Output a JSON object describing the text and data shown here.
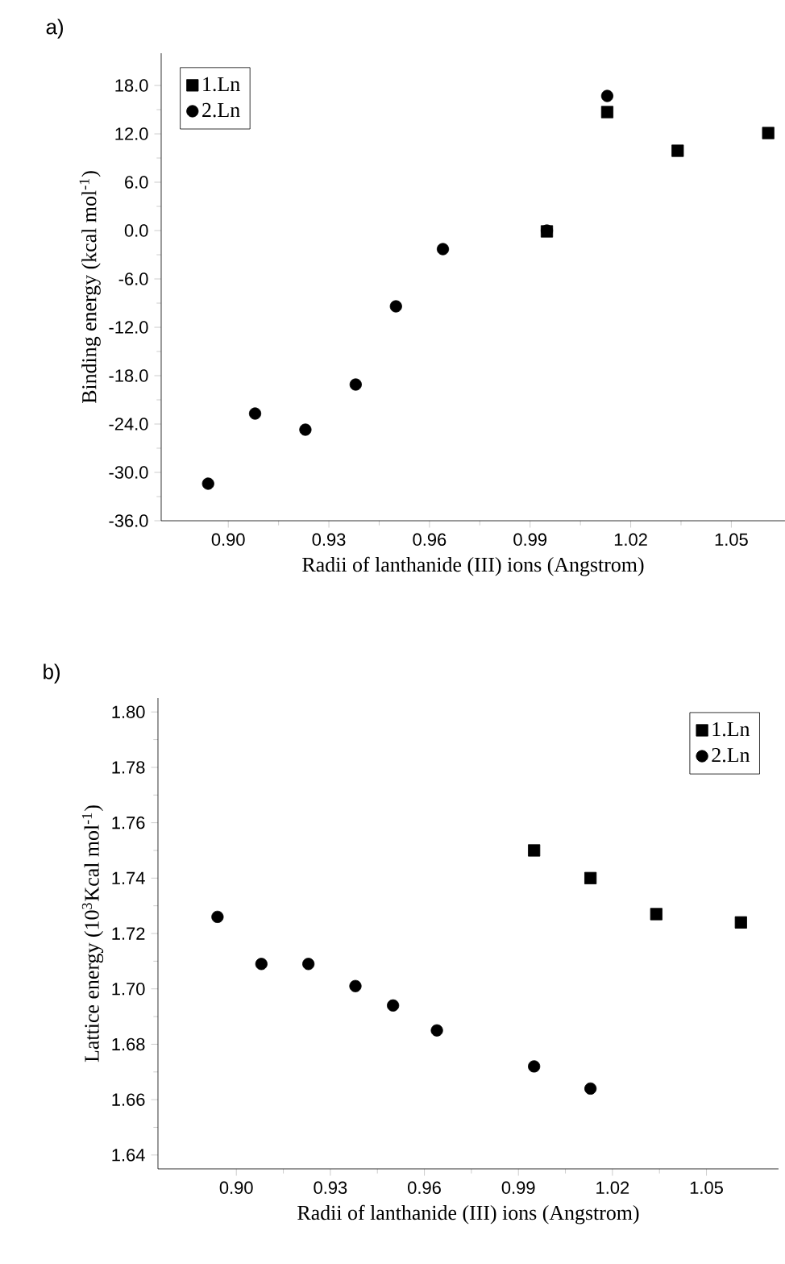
{
  "chart_data": [
    {
      "type": "scatter",
      "title": "a)",
      "xlabel": "Radii of lanthanide (III) ions (Angstrom)",
      "ylabel": "Binding energy (kcal mol$^{-1}$)",
      "xlim": [
        0.88,
        1.066
      ],
      "ylim": [
        -36,
        22
      ],
      "xticks": [
        {
          "value": 0.9,
          "label": "0.90"
        },
        {
          "value": 0.93,
          "label": "0.93"
        },
        {
          "value": 0.96,
          "label": "0.96"
        },
        {
          "value": 0.99,
          "label": "0.99"
        },
        {
          "value": 1.02,
          "label": "1.02"
        },
        {
          "value": 1.05,
          "label": "1.05"
        }
      ],
      "yticks": [
        {
          "value": -36,
          "label": "-36.0"
        },
        {
          "value": -30,
          "label": "-30.0"
        },
        {
          "value": -24,
          "label": "-24.0"
        },
        {
          "value": -18,
          "label": "-18.0"
        },
        {
          "value": -12,
          "label": "-12.0"
        },
        {
          "value": -6,
          "label": "-6.0"
        },
        {
          "value": 0,
          "label": "0.0"
        },
        {
          "value": 6,
          "label": "6.0"
        },
        {
          "value": 12,
          "label": "12.0"
        },
        {
          "value": 18,
          "label": "18.0"
        }
      ],
      "legend": "top left",
      "series": [
        {
          "name": "1.Ln",
          "color": "#000000",
          "marker": "square",
          "x": [
            0.995,
            1.013,
            1.034,
            1.061
          ],
          "values": [
            -0.1,
            14.7,
            9.9,
            12.1
          ]
        },
        {
          "name": "2.Ln",
          "color": "#000000",
          "marker": "circle",
          "x": [
            0.894,
            0.908,
            0.923,
            0.938,
            0.95,
            0.964,
            0.995,
            1.013
          ],
          "values": [
            -31.4,
            -22.7,
            -24.7,
            -19.1,
            -9.4,
            -2.3,
            0.0,
            16.7
          ]
        }
      ]
    },
    {
      "type": "scatter",
      "title": "b)",
      "xlabel": "Radii of lanthanide (III) ions (Angstrom)",
      "ylabel": "Lattice energy (10$^{3}$Kcal mol$^{-1}$)",
      "xlim": [
        0.875,
        1.073
      ],
      "ylim": [
        1.635,
        1.805
      ],
      "xticks": [
        {
          "value": 0.9,
          "label": "0.90"
        },
        {
          "value": 0.93,
          "label": "0.93"
        },
        {
          "value": 0.96,
          "label": "0.96"
        },
        {
          "value": 0.99,
          "label": "0.99"
        },
        {
          "value": 1.02,
          "label": "1.02"
        },
        {
          "value": 1.05,
          "label": "1.05"
        }
      ],
      "yticks": [
        {
          "value": 1.64,
          "label": "1.64"
        },
        {
          "value": 1.66,
          "label": "1.66"
        },
        {
          "value": 1.68,
          "label": "1.68"
        },
        {
          "value": 1.7,
          "label": "1.70"
        },
        {
          "value": 1.72,
          "label": "1.72"
        },
        {
          "value": 1.74,
          "label": "1.74"
        },
        {
          "value": 1.76,
          "label": "1.76"
        },
        {
          "value": 1.78,
          "label": "1.78"
        },
        {
          "value": 1.8,
          "label": "1.80"
        }
      ],
      "legend": "top right",
      "series": [
        {
          "name": "1.Ln",
          "color": "#000000",
          "marker": "square",
          "x": [
            0.995,
            1.013,
            1.034,
            1.061
          ],
          "values": [
            1.75,
            1.74,
            1.727,
            1.724
          ]
        },
        {
          "name": "2.Ln",
          "color": "#000000",
          "marker": "circle",
          "x": [
            0.894,
            0.908,
            0.923,
            0.938,
            0.95,
            0.964,
            0.995,
            1.013
          ],
          "values": [
            1.726,
            1.709,
            1.709,
            1.701,
            1.694,
            1.685,
            1.672,
            1.664
          ]
        }
      ]
    }
  ]
}
